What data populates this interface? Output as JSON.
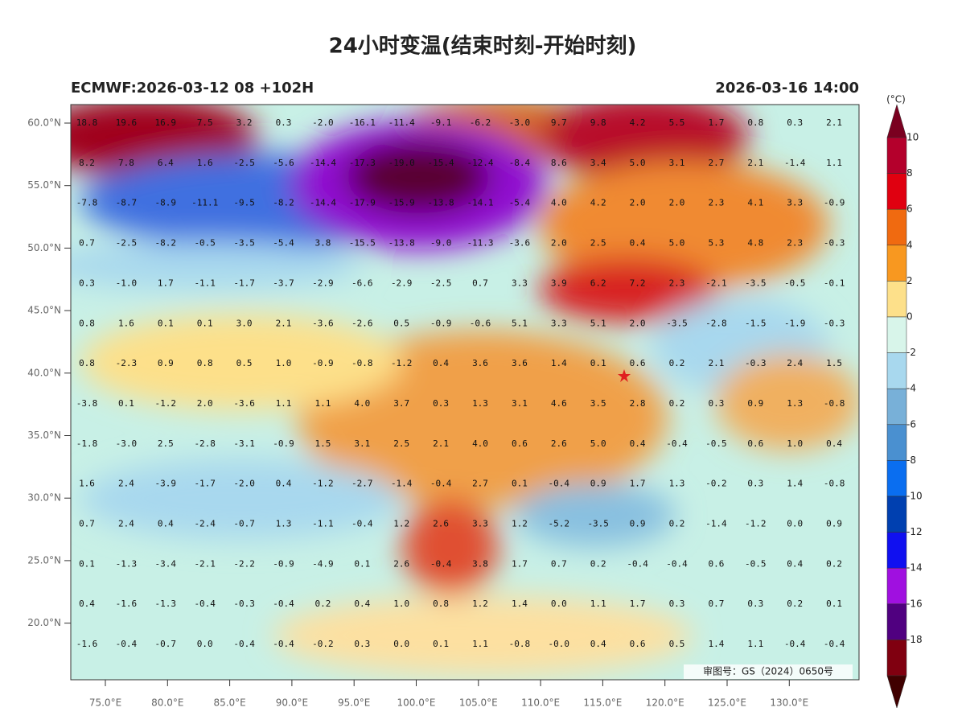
{
  "title": "24小时变温(结束时刻-开始时刻)",
  "subtitle_left": "ECMWF:2026-03-12 08 +102H",
  "subtitle_right": "2026-03-16 14:00",
  "unit": "(°C)",
  "colorbar_labels": [
    "10",
    "8",
    "6",
    "4",
    "2",
    "0",
    "-2",
    "-4",
    "-6",
    "-8",
    "-10",
    "-12",
    "-14",
    "-16",
    "-18"
  ],
  "lat_ticks": [
    "60.0°N",
    "55.0°N",
    "50.0°N",
    "45.0°N",
    "40.0°N",
    "35.0°N",
    "30.0°N",
    "25.0°N",
    "20.0°N"
  ],
  "lon_ticks": [
    "75.0°E",
    "80.0°E",
    "85.0°E",
    "90.0°E",
    "95.0°E",
    "100.0°E",
    "105.0°E",
    "110.0°E",
    "115.0°E",
    "120.0°E",
    "125.0°E",
    "130.0°E"
  ],
  "grid": [
    [
      "18.8",
      "19.6",
      "16.9",
      "7.5",
      "3.2",
      "0.3",
      "-2.0",
      "-16.1",
      "-11.4",
      "-9.1",
      "-6.2",
      "-3.0",
      "9.7",
      "9.8",
      "4.2",
      "5.5",
      "1.7",
      "0.8",
      "0.3",
      "2.1"
    ],
    [
      "8.2",
      "7.8",
      "6.4",
      "1.6",
      "-2.5",
      "-5.6",
      "-14.4",
      "-17.3",
      "-19.0",
      "-15.4",
      "-12.4",
      "-8.4",
      "8.6",
      "3.4",
      "5.0",
      "3.1",
      "2.7",
      "2.1",
      "-1.4",
      "1.1"
    ],
    [
      "-7.8",
      "-8.7",
      "-8.9",
      "-11.1",
      "-9.5",
      "-8.2",
      "-14.4",
      "-17.9",
      "-15.9",
      "-13.8",
      "-14.1",
      "-5.4",
      "4.0",
      "4.2",
      "2.0",
      "2.0",
      "2.3",
      "4.1",
      "3.3",
      "-0.9"
    ],
    [
      "0.7",
      "-2.5",
      "-8.2",
      "-0.5",
      "-3.5",
      "-5.4",
      "3.8",
      "-15.5",
      "-13.8",
      "-9.0",
      "-11.3",
      "-3.6",
      "2.0",
      "2.5",
      "0.4",
      "5.0",
      "5.3",
      "4.8",
      "2.3",
      "-0.3"
    ],
    [
      "0.3",
      "-1.0",
      "1.7",
      "-1.1",
      "-1.7",
      "-3.7",
      "-2.9",
      "-6.6",
      "-2.9",
      "-2.5",
      "0.7",
      "3.3",
      "3.9",
      "6.2",
      "7.2",
      "2.3",
      "-2.1",
      "-3.5",
      "-0.5",
      "-0.1"
    ],
    [
      "0.8",
      "1.6",
      "0.1",
      "0.1",
      "3.0",
      "2.1",
      "-3.6",
      "-2.6",
      "0.5",
      "-0.9",
      "-0.6",
      "5.1",
      "3.3",
      "5.1",
      "2.0",
      "-3.5",
      "-2.8",
      "-1.5",
      "-1.9",
      "-0.3"
    ],
    [
      "0.8",
      "-2.3",
      "0.9",
      "0.8",
      "0.5",
      "1.0",
      "-0.9",
      "-0.8",
      "-1.2",
      "0.4",
      "3.6",
      "3.6",
      "1.4",
      "0.1",
      "0.6",
      "0.2",
      "2.1",
      "-0.3",
      "2.4",
      "1.5"
    ],
    [
      "-3.8",
      "0.1",
      "-1.2",
      "2.0",
      "-3.6",
      "1.1",
      "1.1",
      "4.0",
      "3.7",
      "0.3",
      "1.3",
      "3.1",
      "4.6",
      "3.5",
      "2.8",
      "0.2",
      "0.3",
      "0.9",
      "1.3",
      "-0.8"
    ],
    [
      "-1.8",
      "-3.0",
      "2.5",
      "-2.8",
      "-3.1",
      "-0.9",
      "1.5",
      "3.1",
      "2.5",
      "2.1",
      "4.0",
      "0.6",
      "2.6",
      "5.0",
      "0.4",
      "-0.4",
      "-0.5",
      "0.6",
      "1.0",
      "0.4"
    ],
    [
      "1.6",
      "2.4",
      "-3.9",
      "-1.7",
      "-2.0",
      "0.4",
      "-1.2",
      "-2.7",
      "-1.4",
      "-0.4",
      "2.7",
      "0.1",
      "-0.4",
      "0.9",
      "1.7",
      "1.3",
      "-0.2",
      "0.3",
      "1.4",
      "-0.8"
    ],
    [
      "0.7",
      "2.4",
      "0.4",
      "-2.4",
      "-0.7",
      "1.3",
      "-1.1",
      "-0.4",
      "1.2",
      "2.6",
      "3.3",
      "1.2",
      "-5.2",
      "-3.5",
      "0.9",
      "0.2",
      "-1.4",
      "-1.2",
      "0.0",
      "0.9"
    ],
    [
      "0.1",
      "-1.3",
      "-3.4",
      "-2.1",
      "-2.2",
      "-0.9",
      "-4.9",
      "0.1",
      "2.6",
      "-0.4",
      "3.8",
      "1.7",
      "0.7",
      "0.2",
      "-0.4",
      "-0.4",
      "0.6",
      "-0.5",
      "0.4",
      "0.2"
    ],
    [
      "0.4",
      "-1.6",
      "-1.3",
      "-0.4",
      "-0.3",
      "-0.4",
      "0.2",
      "0.4",
      "1.0",
      "0.8",
      "1.2",
      "1.4",
      "0.0",
      "1.1",
      "1.7",
      "0.3",
      "0.7",
      "0.3",
      "0.2",
      "0.1"
    ],
    [
      "-1.6",
      "-0.4",
      "-0.7",
      "0.0",
      "-0.4",
      "-0.4",
      "-0.2",
      "0.3",
      "0.0",
      "0.1",
      "1.1",
      "-0.8",
      "-0.0",
      "0.4",
      "0.6",
      "0.5",
      "1.4",
      "1.1",
      "-0.4",
      "-0.4"
    ]
  ],
  "review_number": "审图号：GS（2024）0650号"
}
